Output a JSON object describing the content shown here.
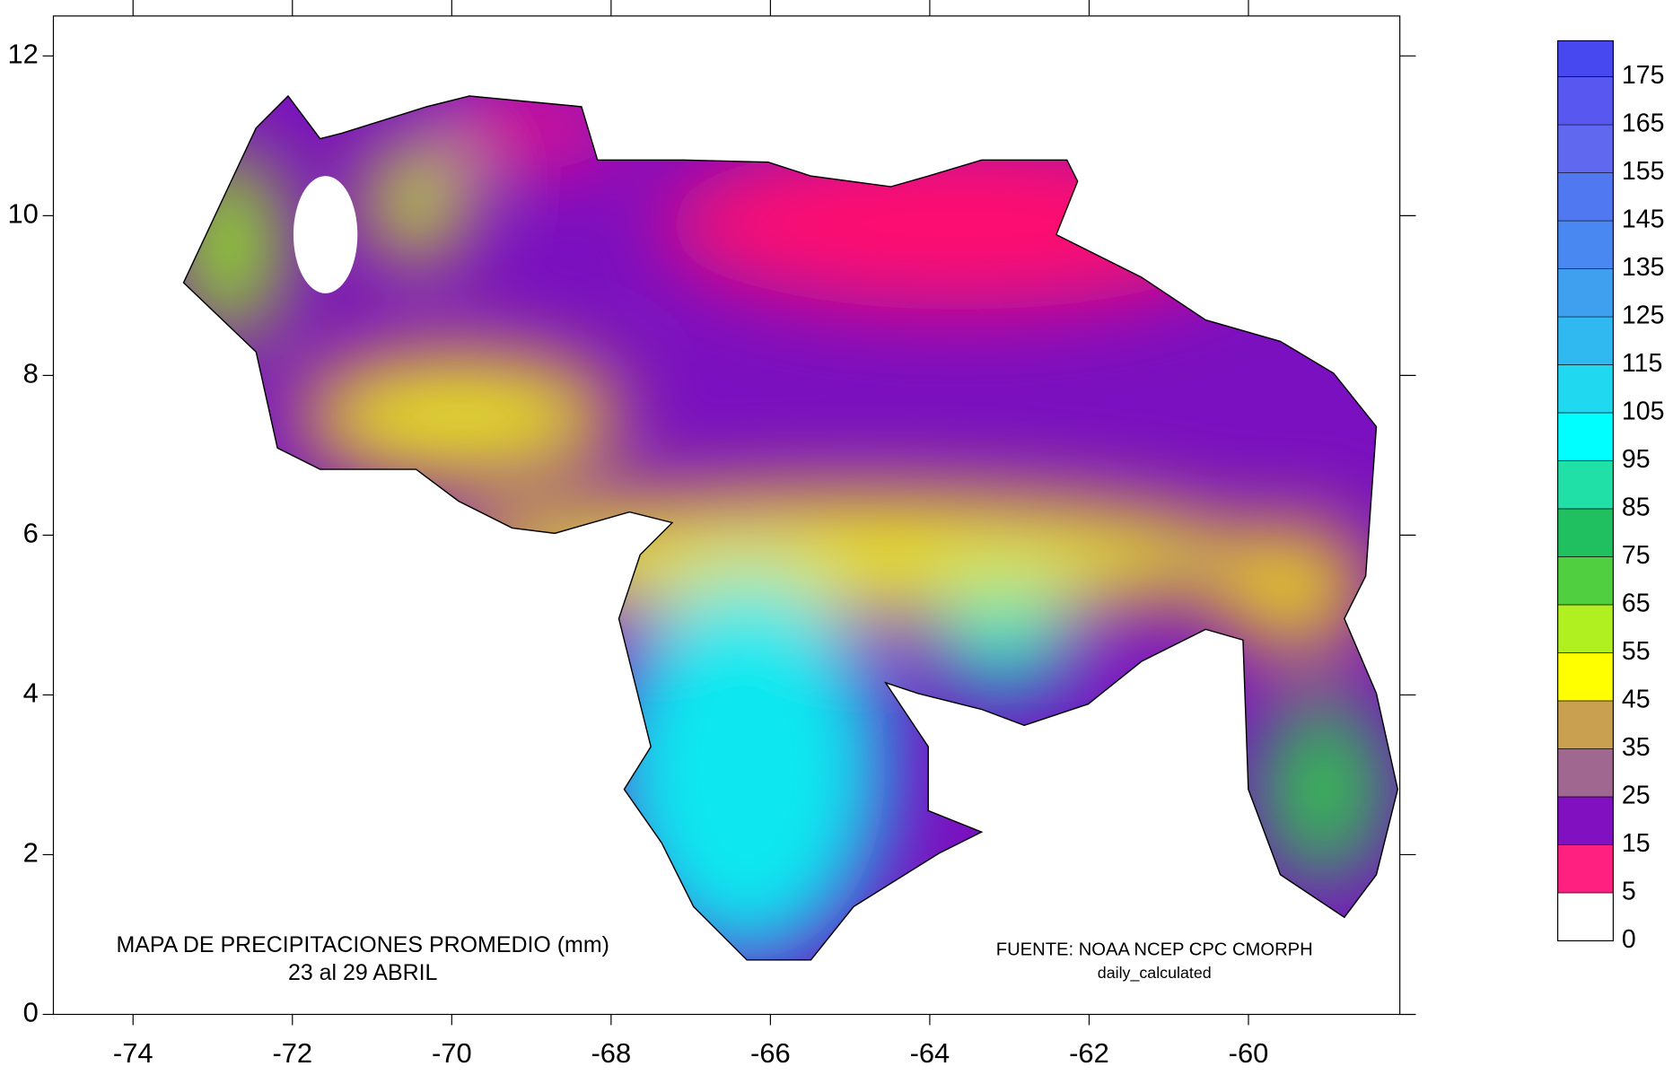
{
  "chart_data": {
    "type": "map",
    "title": "MAPA DE PRECIPITACIONES PROMEDIO (mm)",
    "subtitle": "23 al 29 ABRIL",
    "source": "FUENTE: NOAA NCEP CPC CMORPH",
    "source_note": "daily_calculated",
    "xlim": [
      -75,
      -58.1
    ],
    "ylim": [
      0,
      12.5
    ],
    "xticks": [
      -74,
      -72,
      -70,
      -68,
      -66,
      -64,
      -62,
      -60
    ],
    "yticks": [
      0,
      2,
      4,
      6,
      8,
      10,
      12
    ],
    "colorbar": {
      "levels": [
        0,
        5,
        15,
        25,
        35,
        45,
        55,
        65,
        75,
        85,
        95,
        105,
        115,
        125,
        135,
        145,
        155,
        165,
        175
      ],
      "colors": [
        "#ffffff",
        "#ff2080",
        "#8010c0",
        "#a06890",
        "#c8a050",
        "#ffff00",
        "#b0f020",
        "#50d040",
        "#20c060",
        "#20e0a8",
        "#00ffff",
        "#20d8f0",
        "#30b8f0",
        "#40a0f0",
        "#4888f0",
        "#5078f0",
        "#6068f0",
        "#5858f0",
        "#4848f0"
      ]
    }
  }
}
